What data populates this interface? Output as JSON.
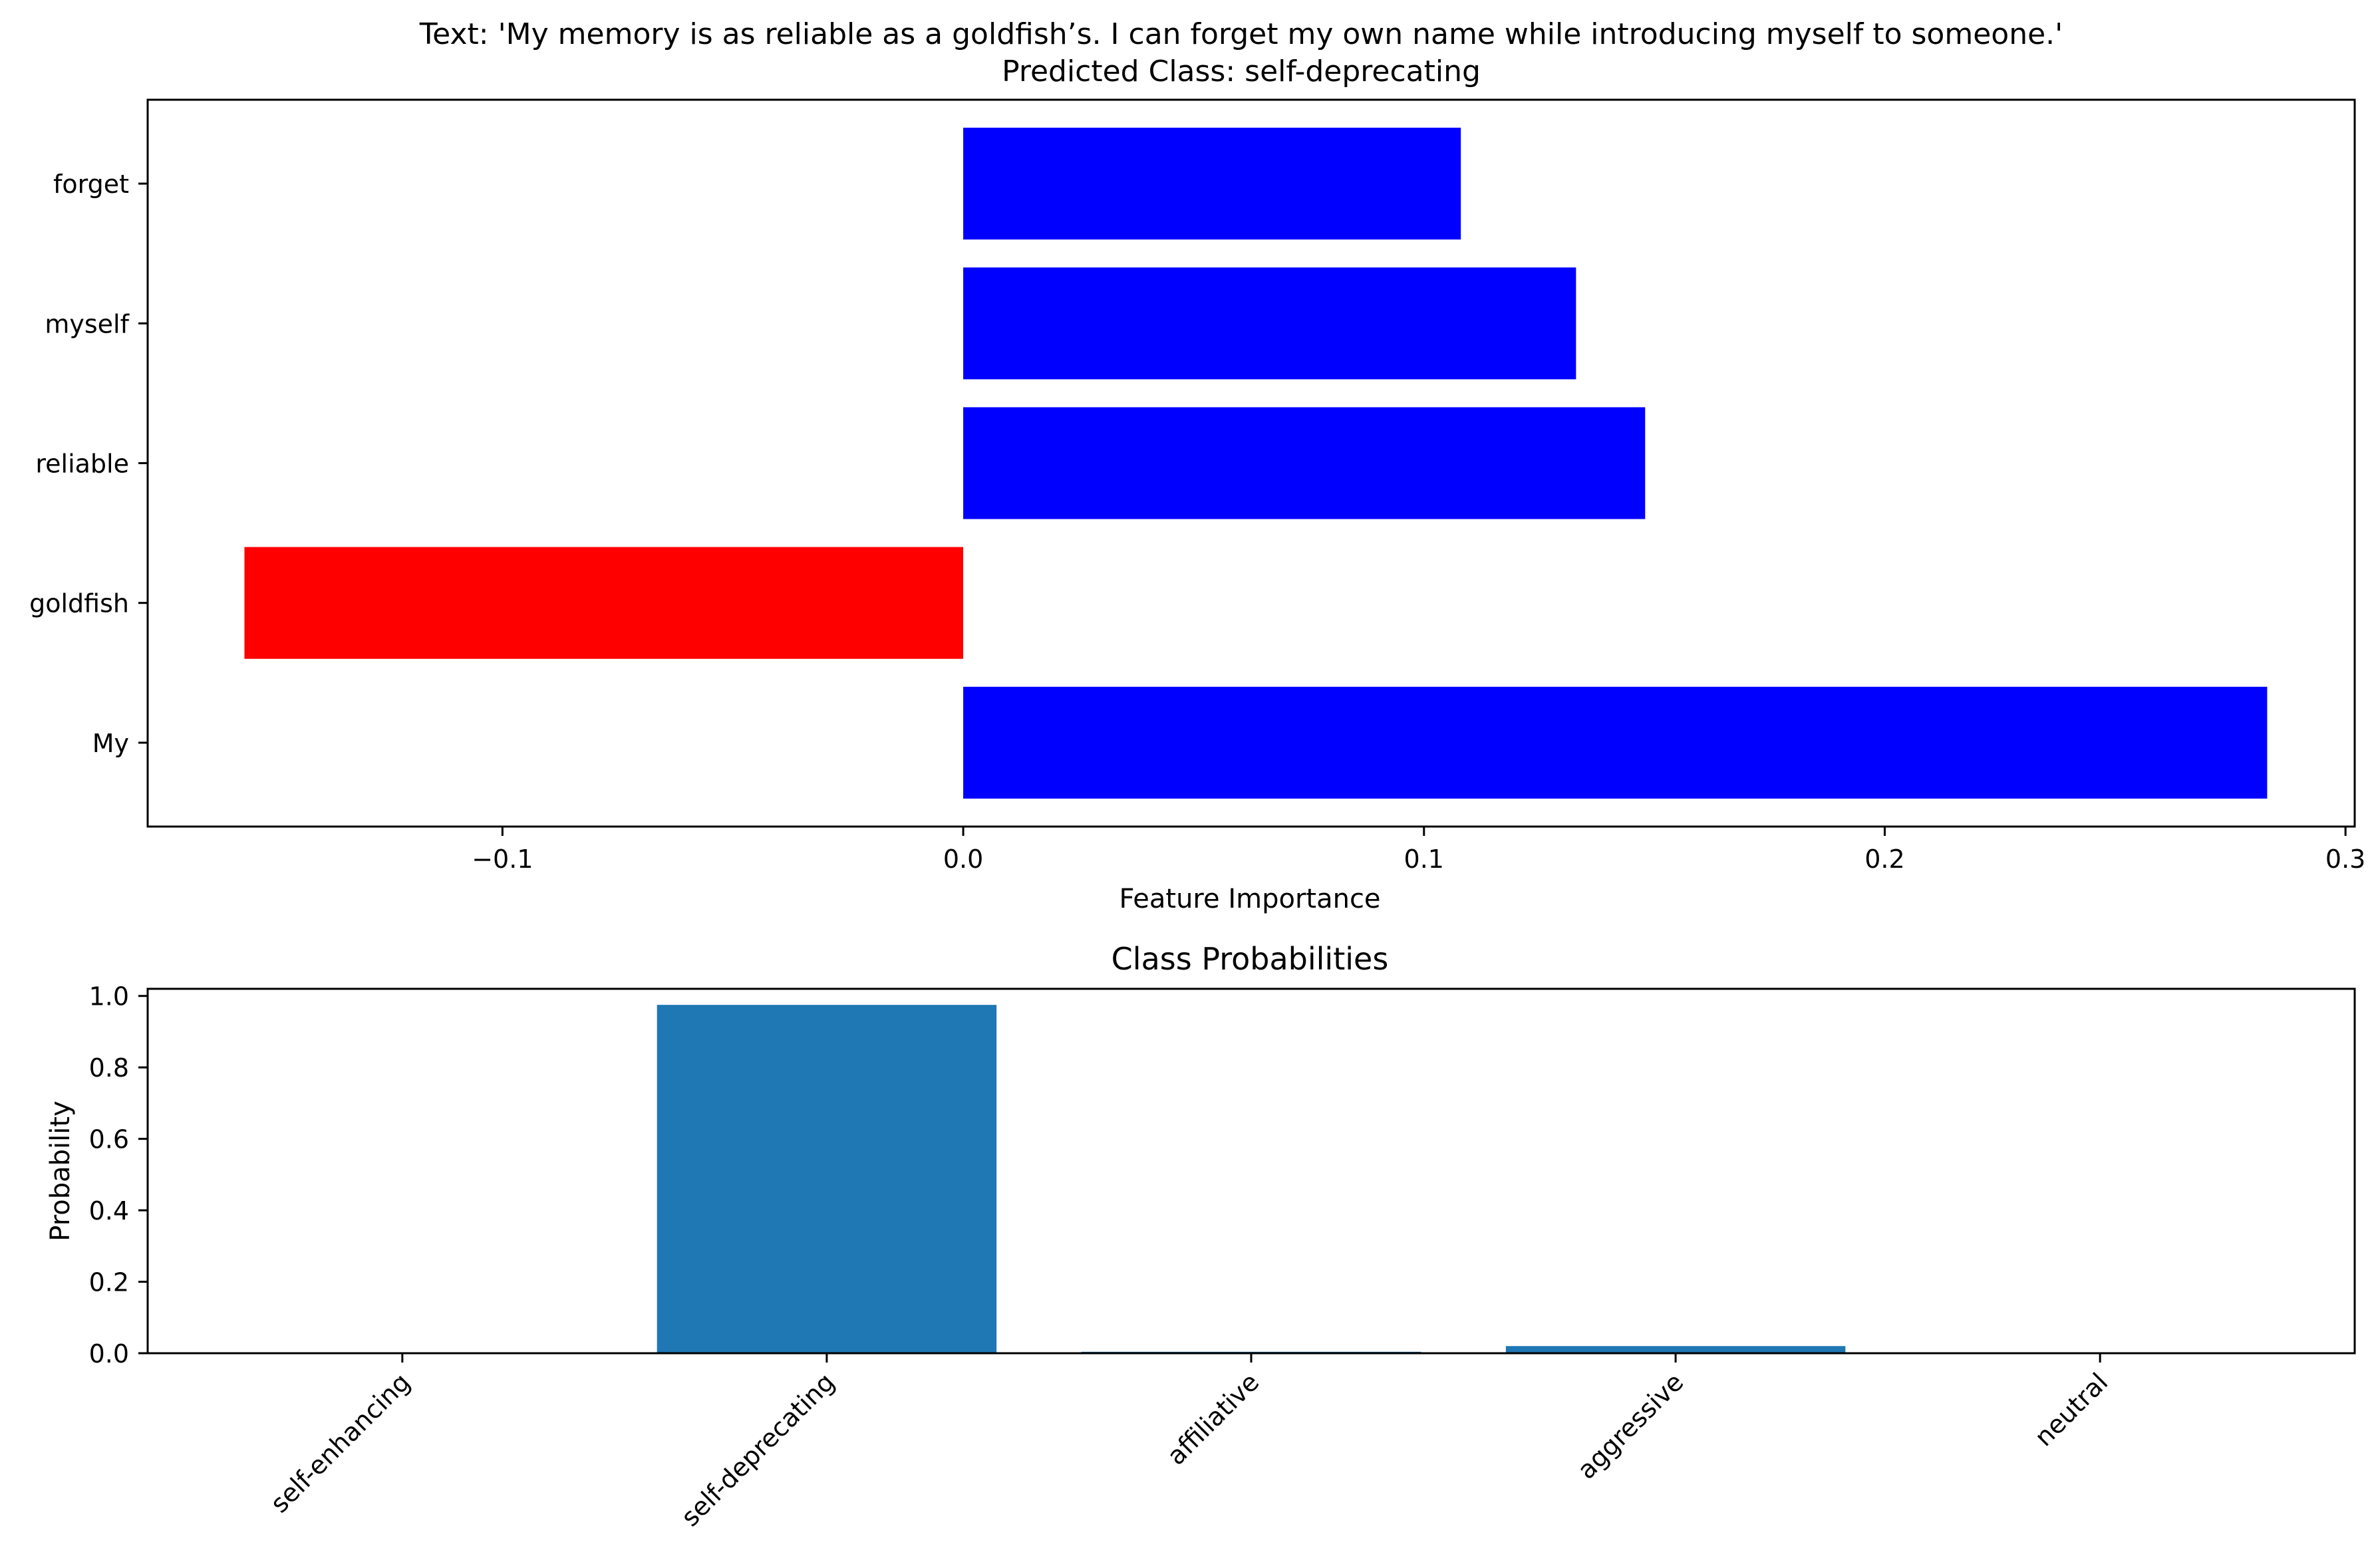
{
  "chart_data": [
    {
      "type": "bar",
      "orientation": "horizontal",
      "title": "Text: 'My memory is as reliable as a goldfish’s. I can forget my own name while introducing myself to someone.'",
      "subtitle": "Predicted Class: self-deprecating",
      "xlabel": "Feature Importance",
      "ylabel": "",
      "categories": [
        "My",
        "goldfish",
        "reliable",
        "myself",
        "forget"
      ],
      "values": [
        0.283,
        -0.156,
        0.148,
        0.133,
        0.108
      ],
      "xlim": [
        -0.177,
        0.302
      ],
      "xticks": [
        -0.1,
        0.0,
        0.1,
        0.2,
        0.3
      ],
      "xtick_labels": [
        "−0.1",
        "0.0",
        "0.1",
        "0.2",
        "0.3"
      ],
      "grid": false,
      "colors": {
        "positive": "#0000ff",
        "negative": "#ff0000"
      }
    },
    {
      "type": "bar",
      "title": "Class Probabilities",
      "xlabel": "",
      "ylabel": "Probability",
      "categories": [
        "self-enhancing",
        "self-deprecating",
        "affiliative",
        "aggressive",
        "neutral"
      ],
      "values": [
        0.001,
        0.975,
        0.004,
        0.02,
        0.001
      ],
      "ylim": [
        0,
        1.02
      ],
      "yticks": [
        0.0,
        0.2,
        0.4,
        0.6,
        0.8,
        1.0
      ],
      "ytick_labels": [
        "0.0",
        "0.2",
        "0.4",
        "0.6",
        "0.8",
        "1.0"
      ],
      "grid": false,
      "colors": {
        "bar": "#1f77b4"
      }
    }
  ]
}
